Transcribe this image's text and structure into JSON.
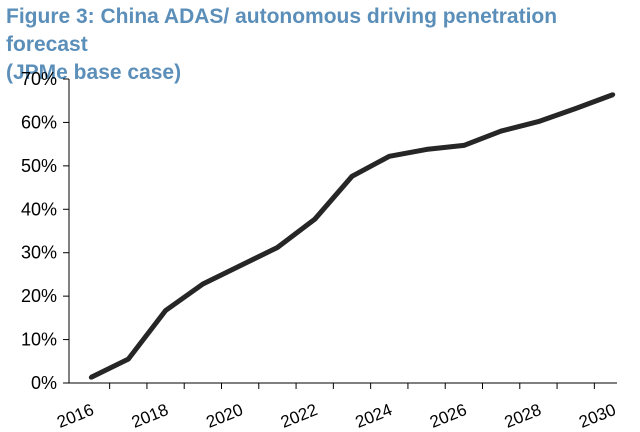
{
  "title": {
    "line1": "Figure 3: China ADAS/ autonomous driving penetration forecast",
    "line2": "(JPMe base case)"
  },
  "colors": {
    "title": "#5B8FB9",
    "line": "#262626",
    "axis": "#000000"
  },
  "chart_data": {
    "type": "line",
    "title": "Figure 3: China ADAS/ autonomous driving penetration forecast (JPMe base case)",
    "xlabel": "",
    "ylabel": "",
    "x": [
      2016,
      2017,
      2018,
      2019,
      2020,
      2021,
      2022,
      2023,
      2024,
      2025,
      2026,
      2027,
      2028,
      2029,
      2030
    ],
    "series": [
      {
        "values": [
          0.013,
          0.055,
          0.167,
          0.228,
          0.27,
          0.312,
          0.377,
          0.476,
          0.522,
          0.538,
          0.547,
          0.58,
          0.602,
          0.632,
          0.664
        ]
      }
    ],
    "ylim": [
      0,
      0.7
    ],
    "yticks": [
      0,
      0.1,
      0.2,
      0.3,
      0.4,
      0.5,
      0.6,
      0.7
    ],
    "ytick_labels": [
      "0%",
      "10%",
      "20%",
      "30%",
      "40%",
      "50%",
      "60%",
      "70%"
    ],
    "xticks": [
      2016,
      2018,
      2020,
      2022,
      2024,
      2026,
      2028,
      2030
    ],
    "xtick_labels": [
      "2016",
      "2018",
      "2020",
      "2022",
      "2024",
      "2026",
      "2028",
      "2030"
    ],
    "grid": false,
    "legend": "none"
  }
}
